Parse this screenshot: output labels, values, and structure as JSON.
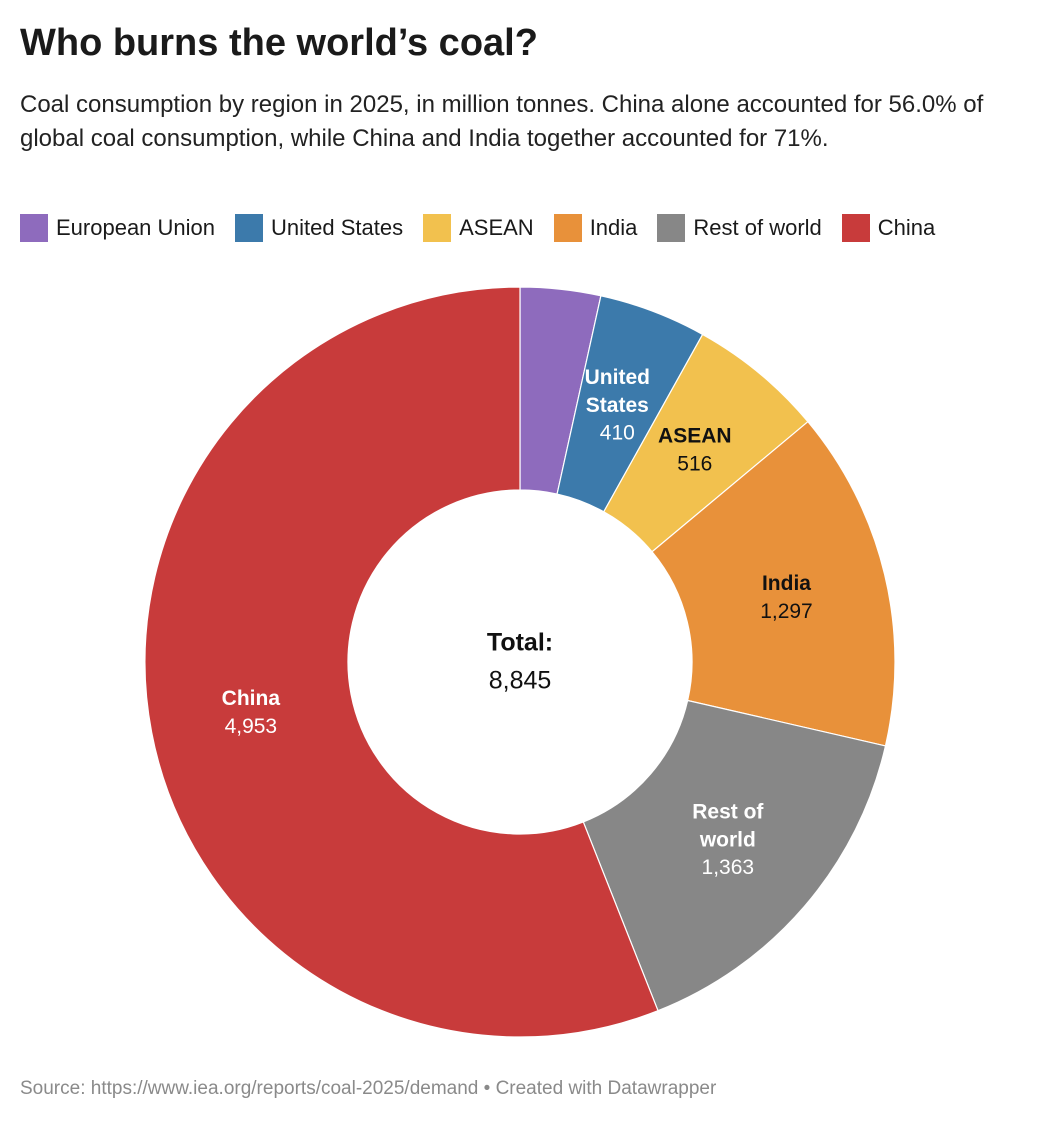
{
  "chart_data": {
    "type": "donut",
    "title": "Who burns the world’s coal?",
    "subtitle": "Coal consumption by region in 2025, in million tonnes. China alone accounted for 56.0% of global coal consumption, while China and India together accounted for 71%.",
    "categories": [
      "European Union",
      "United States",
      "ASEAN",
      "India",
      "Rest of world",
      "China"
    ],
    "values": [
      306,
      410,
      516,
      1297,
      1363,
      4953
    ],
    "value_labels": [
      null,
      "410",
      "516",
      "1,297",
      "1,363",
      "4,953"
    ],
    "colors": [
      "#8e6bbd",
      "#3c7aab",
      "#f2c14e",
      "#e8913a",
      "#878787",
      "#c83b3b"
    ],
    "total_title": "Total:",
    "total": {
      "value": 8845,
      "label": "8,845"
    },
    "legend": "top-left",
    "source": "Source: https://www.iea.org/reports/coal-2025/demand • Created with Datawrapper"
  }
}
